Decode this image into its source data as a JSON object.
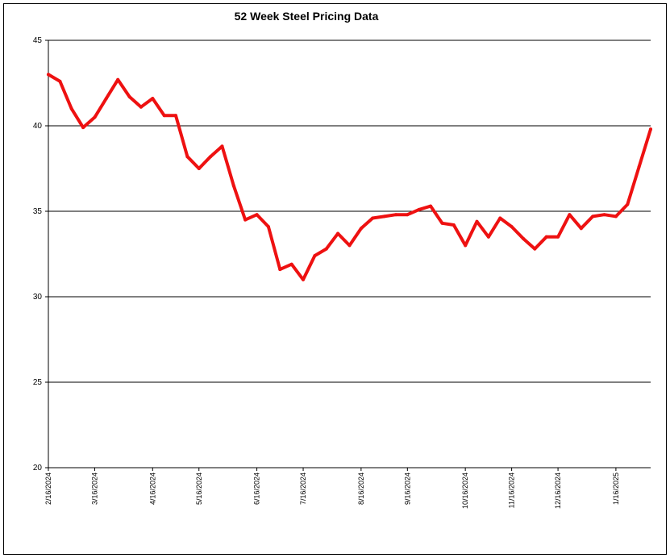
{
  "chart_data": {
    "type": "line",
    "title": "52 Week Steel Pricing Data",
    "xlabel": "",
    "ylabel": "",
    "ylim": [
      20,
      45
    ],
    "yticks": [
      20,
      25,
      30,
      35,
      40,
      45
    ],
    "grid": true,
    "legend": "none",
    "line_color": "#ee1111",
    "x_tick_labels": [
      "2/16/2024",
      "3/16/2024",
      "4/16/2024",
      "5/16/2024",
      "6/16/2024",
      "7/16/2024",
      "8/16/2024",
      "9/16/2024",
      "10/16/2024",
      "11/16/2024",
      "12/16/2024",
      "1/16/2025"
    ],
    "x_tick_index": [
      0,
      4,
      9,
      13,
      18,
      22,
      27,
      31,
      36,
      40,
      44,
      49
    ],
    "series": [
      {
        "values": [
          43.0,
          42.6,
          41.0,
          39.9,
          40.5,
          41.6,
          42.7,
          41.7,
          41.1,
          41.6,
          40.6,
          40.6,
          38.2,
          37.5,
          38.2,
          38.8,
          36.5,
          34.5,
          34.8,
          34.1,
          31.6,
          31.9,
          31.0,
          32.4,
          32.8,
          33.7,
          33.0,
          34.0,
          34.6,
          34.7,
          34.8,
          34.8,
          35.1,
          35.3,
          34.3,
          34.2,
          33.0,
          34.4,
          33.5,
          34.6,
          34.1,
          33.4,
          32.8,
          33.5,
          33.5,
          34.8,
          34.0,
          34.7,
          34.8,
          34.7,
          35.4,
          37.6,
          39.8
        ]
      }
    ]
  }
}
